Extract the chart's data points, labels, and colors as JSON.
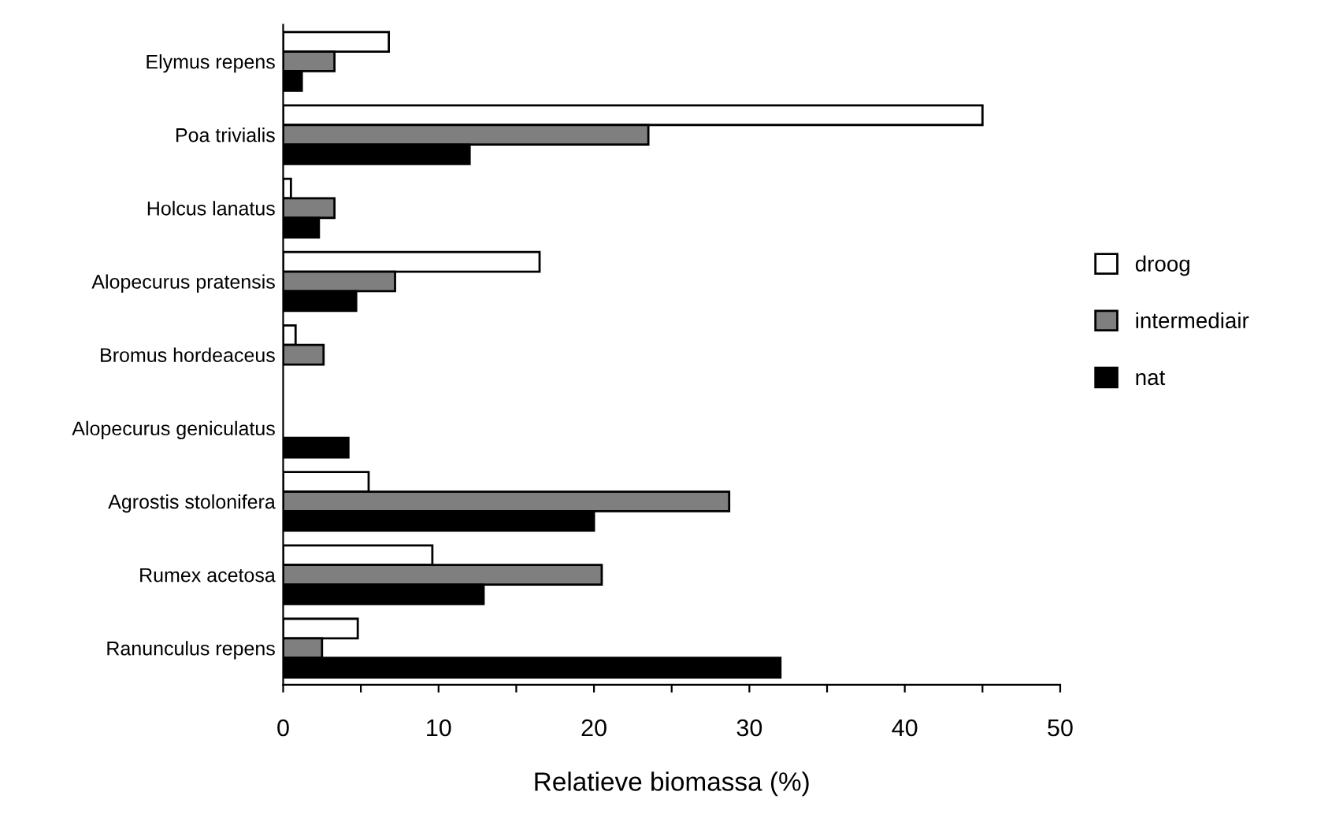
{
  "chart_data": {
    "type": "bar",
    "orientation": "horizontal",
    "xlabel": "Relatieve biomassa (%)",
    "categories": [
      "Elymus repens",
      "Poa trivialis",
      "Holcus lanatus",
      "Alopecurus pratensis",
      "Bromus hordeaceus",
      "Alopecurus geniculatus",
      "Agrostis stolonifera",
      "Rumex acetosa",
      "Ranunculus repens"
    ],
    "series": [
      {
        "name": "droog",
        "color": "#ffffff",
        "values": [
          6.8,
          45,
          0.5,
          16.5,
          0.8,
          0,
          5.5,
          9.6,
          4.8
        ]
      },
      {
        "name": "intermediair",
        "color": "#7f7f7f",
        "values": [
          3.3,
          23.5,
          3.3,
          7.2,
          2.6,
          0,
          28.7,
          20.5,
          2.5
        ]
      },
      {
        "name": "nat",
        "color": "#000000",
        "values": [
          1.2,
          12,
          2.3,
          4.7,
          0,
          4.2,
          20,
          12.9,
          32
        ]
      }
    ],
    "xlim": [
      0,
      50
    ],
    "xticks": [
      0,
      {
        "value": 5,
        "label": null
      },
      10,
      {
        "value": 15,
        "label": null
      },
      20,
      {
        "value": 25,
        "label": null
      },
      30,
      {
        "value": 35,
        "label": null
      },
      40,
      {
        "value": 45,
        "label": null
      },
      50
    ],
    "legend": "right",
    "grid": false
  }
}
